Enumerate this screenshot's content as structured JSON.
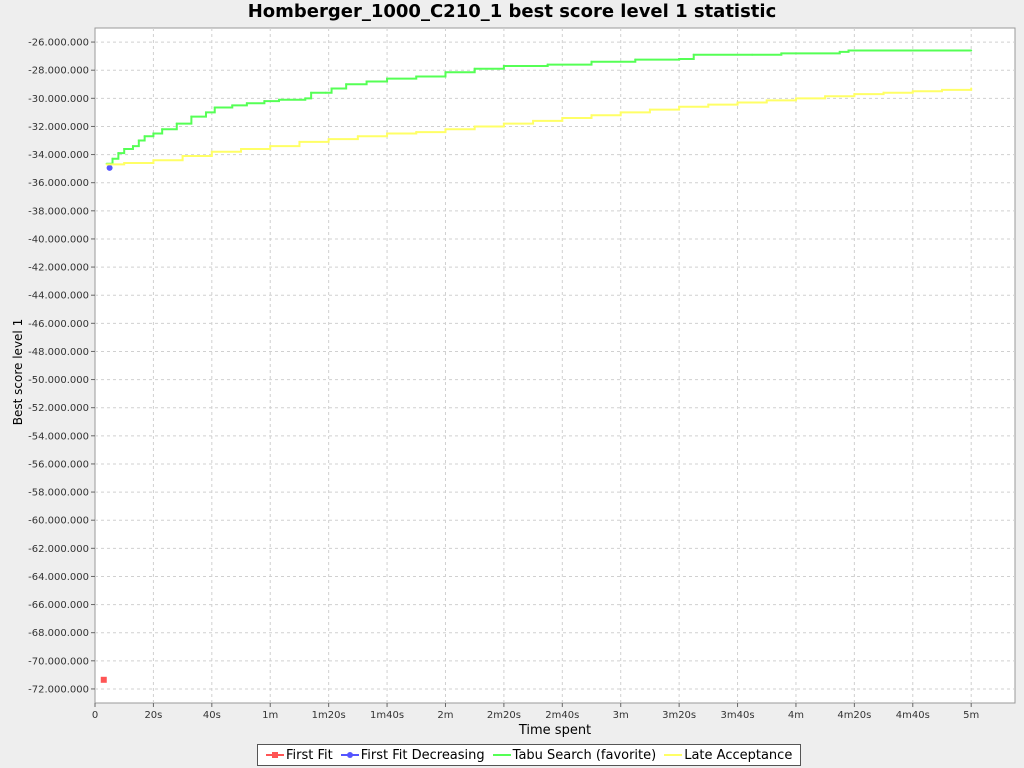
{
  "chart_data": {
    "type": "line",
    "title": "Homberger_1000_C210_1 best score level 1 statistic",
    "xlabel": "Time spent",
    "ylabel": "Best score level 1",
    "x_unit": "seconds",
    "xlim": [
      0,
      315
    ],
    "ylim": [
      -73000000,
      -25000000
    ],
    "x_ticks": [
      {
        "value": 0,
        "label": "0"
      },
      {
        "value": 20,
        "label": "20s"
      },
      {
        "value": 40,
        "label": "40s"
      },
      {
        "value": 60,
        "label": "1m"
      },
      {
        "value": 80,
        "label": "1m20s"
      },
      {
        "value": 100,
        "label": "1m40s"
      },
      {
        "value": 120,
        "label": "2m"
      },
      {
        "value": 140,
        "label": "2m20s"
      },
      {
        "value": 160,
        "label": "2m40s"
      },
      {
        "value": 180,
        "label": "3m"
      },
      {
        "value": 200,
        "label": "3m20s"
      },
      {
        "value": 220,
        "label": "3m40s"
      },
      {
        "value": 240,
        "label": "4m"
      },
      {
        "value": 260,
        "label": "4m20s"
      },
      {
        "value": 280,
        "label": "4m40s"
      },
      {
        "value": 300,
        "label": "5m"
      }
    ],
    "y_ticks": [
      {
        "value": -26000000,
        "label": "-26.000.000"
      },
      {
        "value": -28000000,
        "label": "-28.000.000"
      },
      {
        "value": -30000000,
        "label": "-30.000.000"
      },
      {
        "value": -32000000,
        "label": "-32.000.000"
      },
      {
        "value": -34000000,
        "label": "-34.000.000"
      },
      {
        "value": -36000000,
        "label": "-36.000.000"
      },
      {
        "value": -38000000,
        "label": "-38.000.000"
      },
      {
        "value": -40000000,
        "label": "-40.000.000"
      },
      {
        "value": -42000000,
        "label": "-42.000.000"
      },
      {
        "value": -44000000,
        "label": "-44.000.000"
      },
      {
        "value": -46000000,
        "label": "-46.000.000"
      },
      {
        "value": -48000000,
        "label": "-48.000.000"
      },
      {
        "value": -50000000,
        "label": "-50.000.000"
      },
      {
        "value": -52000000,
        "label": "-52.000.000"
      },
      {
        "value": -54000000,
        "label": "-54.000.000"
      },
      {
        "value": -56000000,
        "label": "-56.000.000"
      },
      {
        "value": -58000000,
        "label": "-58.000.000"
      },
      {
        "value": -60000000,
        "label": "-60.000.000"
      },
      {
        "value": -62000000,
        "label": "-62.000.000"
      },
      {
        "value": -64000000,
        "label": "-64.000.000"
      },
      {
        "value": -66000000,
        "label": "-66.000.000"
      },
      {
        "value": -68000000,
        "label": "-68.000.000"
      },
      {
        "value": -70000000,
        "label": "-70.000.000"
      },
      {
        "value": -72000000,
        "label": "-72.000.000"
      }
    ],
    "grid": true,
    "legend_position": "bottom",
    "series": [
      {
        "name": "First Fit",
        "color": "#ff5555",
        "marker": "square",
        "points": [
          [
            3,
            -71350000
          ]
        ]
      },
      {
        "name": "First Fit Decreasing",
        "color": "#5555ff",
        "marker": "circle",
        "points": [
          [
            5,
            -34950000
          ]
        ]
      },
      {
        "name": "Tabu Search (favorite)",
        "color": "#55ff55",
        "marker": "line",
        "points": [
          [
            4,
            -34650000
          ],
          [
            6,
            -34300000
          ],
          [
            8,
            -33900000
          ],
          [
            10,
            -33600000
          ],
          [
            13,
            -33400000
          ],
          [
            15,
            -33000000
          ],
          [
            17,
            -32700000
          ],
          [
            20,
            -32500000
          ],
          [
            23,
            -32200000
          ],
          [
            28,
            -31800000
          ],
          [
            33,
            -31300000
          ],
          [
            38,
            -31000000
          ],
          [
            41,
            -30650000
          ],
          [
            47,
            -30500000
          ],
          [
            52,
            -30350000
          ],
          [
            58,
            -30200000
          ],
          [
            63,
            -30100000
          ],
          [
            72,
            -30000000
          ],
          [
            74,
            -29600000
          ],
          [
            79,
            -29600000
          ],
          [
            81,
            -29300000
          ],
          [
            86,
            -29000000
          ],
          [
            93,
            -28800000
          ],
          [
            100,
            -28600000
          ],
          [
            110,
            -28450000
          ],
          [
            120,
            -28150000
          ],
          [
            130,
            -27900000
          ],
          [
            140,
            -27700000
          ],
          [
            155,
            -27600000
          ],
          [
            170,
            -27400000
          ],
          [
            185,
            -27250000
          ],
          [
            200,
            -27200000
          ],
          [
            205,
            -26900000
          ],
          [
            225,
            -26900000
          ],
          [
            235,
            -26800000
          ],
          [
            255,
            -26700000
          ],
          [
            258,
            -26600000
          ],
          [
            300,
            -26600000
          ]
        ]
      },
      {
        "name": "Late Acceptance",
        "color": "#ffff66",
        "marker": "line",
        "points": [
          [
            4,
            -34700000
          ],
          [
            10,
            -34600000
          ],
          [
            20,
            -34400000
          ],
          [
            30,
            -34100000
          ],
          [
            40,
            -33800000
          ],
          [
            50,
            -33600000
          ],
          [
            60,
            -33400000
          ],
          [
            70,
            -33100000
          ],
          [
            80,
            -32900000
          ],
          [
            90,
            -32700000
          ],
          [
            100,
            -32500000
          ],
          [
            110,
            -32400000
          ],
          [
            120,
            -32200000
          ],
          [
            130,
            -32000000
          ],
          [
            140,
            -31800000
          ],
          [
            150,
            -31600000
          ],
          [
            160,
            -31400000
          ],
          [
            170,
            -31200000
          ],
          [
            180,
            -31000000
          ],
          [
            190,
            -30800000
          ],
          [
            200,
            -30600000
          ],
          [
            210,
            -30450000
          ],
          [
            220,
            -30300000
          ],
          [
            230,
            -30150000
          ],
          [
            240,
            -30000000
          ],
          [
            250,
            -29850000
          ],
          [
            260,
            -29700000
          ],
          [
            270,
            -29600000
          ],
          [
            280,
            -29500000
          ],
          [
            290,
            -29400000
          ],
          [
            300,
            -29300000
          ]
        ]
      }
    ]
  }
}
